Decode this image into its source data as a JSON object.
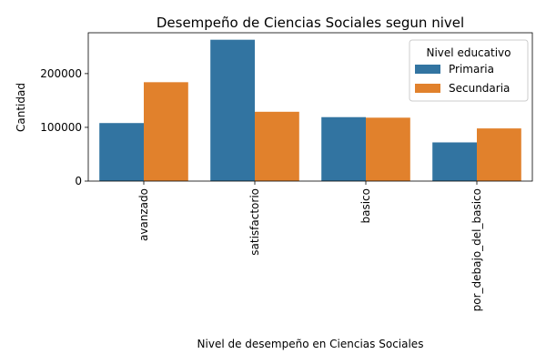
{
  "chart_data": {
    "type": "bar",
    "title": "Desempeño de Ciencias Sociales segun nivel",
    "xlabel": "Nivel de desempeño en Ciencias Sociales",
    "ylabel": "Cantidad",
    "categories": [
      "avanzado",
      "satisfactorio",
      "basico",
      "por_debajo_del_basico"
    ],
    "series": [
      {
        "name": "Primaria",
        "values": [
          108000,
          263000,
          119000,
          72000
        ],
        "color": "#3274a1"
      },
      {
        "name": "Secundaria",
        "values": [
          184000,
          129000,
          118000,
          98000
        ],
        "color": "#e1812c"
      }
    ],
    "ylim": [
      0,
      276000
    ],
    "yticks": [
      0,
      100000,
      200000
    ],
    "legend": {
      "title": "Nivel educativo",
      "placement": "top-right"
    },
    "grid": false
  }
}
